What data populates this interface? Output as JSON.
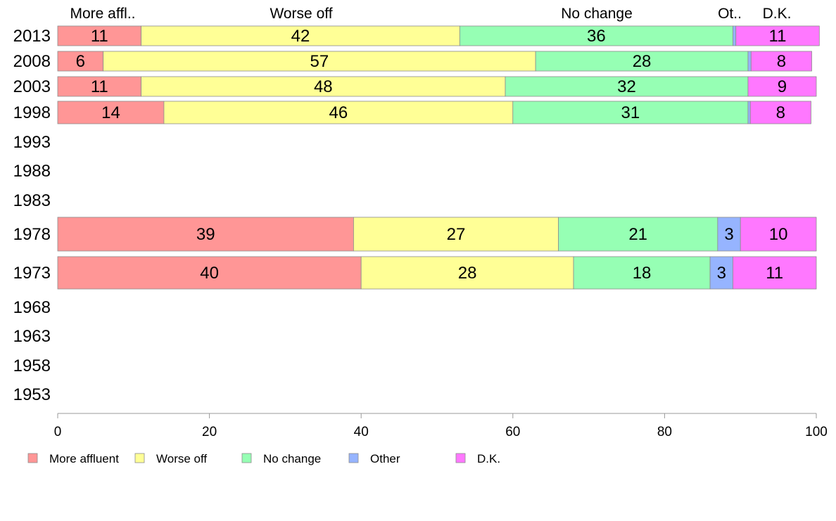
{
  "chart_data": {
    "type": "bar",
    "orientation": "horizontal",
    "stacked": true,
    "title": "",
    "xlabel": "",
    "ylabel": "",
    "xlim": [
      0,
      100
    ],
    "x_ticks": [
      "0",
      "20",
      "40",
      "60",
      "80",
      "100"
    ],
    "categories": [
      "2013",
      "2008",
      "2003",
      "1998",
      "1993",
      "1988",
      "1983",
      "1978",
      "1973",
      "1968",
      "1963",
      "1958",
      "1953"
    ],
    "column_headers": [
      "More affl..",
      "Worse off",
      "No change",
      "Ot..",
      "D.K."
    ],
    "series": [
      {
        "name": "More affluent",
        "color": "#ff9696",
        "values": [
          11,
          6,
          11,
          14,
          null,
          null,
          null,
          39,
          40,
          null,
          null,
          null,
          null
        ],
        "labels": [
          "11",
          "6",
          "11",
          "14",
          "",
          "",
          "",
          "39",
          "40",
          "",
          "",
          "",
          ""
        ]
      },
      {
        "name": "Worse off",
        "color": "#ffff96",
        "values": [
          42,
          57,
          48,
          46,
          null,
          null,
          null,
          27,
          28,
          null,
          null,
          null,
          null
        ],
        "labels": [
          "42",
          "57",
          "48",
          "46",
          "",
          "",
          "",
          "27",
          "28",
          "",
          "",
          "",
          ""
        ]
      },
      {
        "name": "No change",
        "color": "#96ffb4",
        "values": [
          36,
          28,
          32,
          31,
          null,
          null,
          null,
          21,
          18,
          null,
          null,
          null,
          null
        ],
        "labels": [
          "36",
          "28",
          "32",
          "31",
          "",
          "",
          "",
          "21",
          "18",
          "",
          "",
          "",
          ""
        ]
      },
      {
        "name": "Other",
        "color": "#96b4ff",
        "values": [
          0.4,
          0.4,
          0,
          0.3,
          null,
          null,
          null,
          3,
          3,
          null,
          null,
          null,
          null
        ],
        "labels": [
          "",
          "",
          "",
          "",
          "",
          "",
          "",
          "3",
          "3",
          "",
          "",
          "",
          ""
        ]
      },
      {
        "name": "D.K.",
        "color": "#ff78ff",
        "values": [
          11,
          8,
          9,
          8,
          null,
          null,
          null,
          10,
          11,
          null,
          null,
          null,
          null
        ],
        "labels": [
          "11",
          "8",
          "9",
          "8",
          "",
          "",
          "",
          "10",
          "11",
          "",
          "",
          "",
          ""
        ]
      }
    ],
    "legend": {
      "position": "bottom"
    },
    "grid": false
  }
}
